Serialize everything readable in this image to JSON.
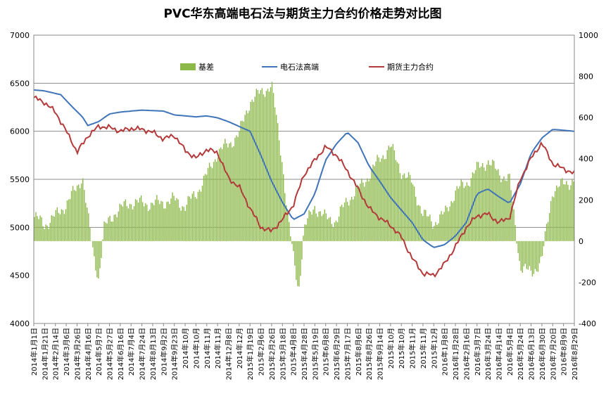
{
  "chart_data": {
    "type": "line+bar",
    "title": "PVC华东高端电石法与期货主力合约价格走势对比图",
    "y_left": {
      "min": 4000,
      "max": 7000,
      "ticks": [
        4000,
        4500,
        5000,
        5500,
        6000,
        6500,
        7000
      ]
    },
    "y_right": {
      "min": -400,
      "max": 1000,
      "ticks": [
        -400,
        -200,
        0,
        200,
        400,
        600,
        800,
        1000
      ]
    },
    "gridlines": [
      5000,
      5500,
      6000,
      6500
    ],
    "legend_position": "top",
    "series": [
      {
        "name": "基差",
        "kind": "bar",
        "axis": "right",
        "color": "#8DB84A"
      },
      {
        "name": "电石法高端",
        "kind": "line",
        "axis": "left",
        "color": "#3F74B9"
      },
      {
        "name": "期货主力合约",
        "kind": "line",
        "axis": "left",
        "color": "#B33A3A"
      }
    ],
    "x_tick_labels": [
      "2014年1月1日",
      "2014年1月21日",
      "2014年2月14日",
      "2014年3月6日",
      "2014年3月26日",
      "2014年4月16日",
      "2014年5月7日",
      "2014年5月27日",
      "2014年6月16日",
      "2014年7月4日",
      "2014年7月24日",
      "2014年8月13日",
      "2014年9月2日",
      "2014年9月23日",
      "2014年10月",
      "2014年10月",
      "2014年11月",
      "2014年11月",
      "2014年12月8日",
      "2014年12月",
      "2015年1月19日",
      "2015年2月6日",
      "2015年2月26日",
      "2015年3月18日",
      "2015年4月8日",
      "2015年4月28日",
      "2015年5月19日",
      "2015年6月8日",
      "2015年6月29日",
      "2015年7月17日",
      "2015年8月6日",
      "2015年8月26日",
      "2015年9月14日",
      "2015年10月",
      "2015年10月",
      "2015年11月",
      "2015年11月",
      "2015年12月",
      "2016年1月8日",
      "2016年1月28日",
      "2016年2月16日",
      "2016年3月7日",
      "2016年3月24日",
      "2016年4月14日",
      "2016年5月4日",
      "2016年5月24日",
      "2016年6月13日",
      "2016年6月30日",
      "2016年7月20日",
      "2016年8月9日",
      "2016年8月29日"
    ],
    "basis": [
      [
        0,
        120
      ],
      [
        0.02,
        80
      ],
      [
        0.04,
        120
      ],
      [
        0.06,
        180
      ],
      [
        0.08,
        260
      ],
      [
        0.09,
        320
      ],
      [
        0.1,
        120
      ],
      [
        0.11,
        -60
      ],
      [
        0.12,
        -180
      ],
      [
        0.13,
        60
      ],
      [
        0.15,
        140
      ],
      [
        0.18,
        190
      ],
      [
        0.22,
        180
      ],
      [
        0.26,
        200
      ],
      [
        0.28,
        170
      ],
      [
        0.3,
        230
      ],
      [
        0.32,
        320
      ],
      [
        0.34,
        430
      ],
      [
        0.36,
        470
      ],
      [
        0.38,
        520
      ],
      [
        0.4,
        680
      ],
      [
        0.42,
        720
      ],
      [
        0.44,
        760
      ],
      [
        0.46,
        380
      ],
      [
        0.47,
        120
      ],
      [
        0.48,
        -80
      ],
      [
        0.49,
        -240
      ],
      [
        0.5,
        60
      ],
      [
        0.52,
        170
      ],
      [
        0.54,
        110
      ],
      [
        0.56,
        100
      ],
      [
        0.58,
        200
      ],
      [
        0.6,
        250
      ],
      [
        0.62,
        320
      ],
      [
        0.64,
        400
      ],
      [
        0.66,
        460
      ],
      [
        0.68,
        340
      ],
      [
        0.7,
        280
      ],
      [
        0.72,
        130
      ],
      [
        0.74,
        90
      ],
      [
        0.76,
        130
      ],
      [
        0.78,
        240
      ],
      [
        0.8,
        280
      ],
      [
        0.82,
        350
      ],
      [
        0.84,
        390
      ],
      [
        0.86,
        330
      ],
      [
        0.88,
        300
      ],
      [
        0.9,
        -120
      ],
      [
        0.92,
        -160
      ],
      [
        0.94,
        -90
      ],
      [
        0.96,
        250
      ],
      [
        1,
        300
      ]
    ],
    "electric_high": [
      [
        0,
        6430
      ],
      [
        0.02,
        6420
      ],
      [
        0.05,
        6380
      ],
      [
        0.07,
        6260
      ],
      [
        0.09,
        6150
      ],
      [
        0.1,
        6060
      ],
      [
        0.12,
        6100
      ],
      [
        0.14,
        6180
      ],
      [
        0.16,
        6200
      ],
      [
        0.2,
        6220
      ],
      [
        0.24,
        6210
      ],
      [
        0.26,
        6170
      ],
      [
        0.3,
        6150
      ],
      [
        0.32,
        6160
      ],
      [
        0.34,
        6140
      ],
      [
        0.36,
        6100
      ],
      [
        0.38,
        6050
      ],
      [
        0.4,
        6000
      ],
      [
        0.42,
        5750
      ],
      [
        0.44,
        5480
      ],
      [
        0.46,
        5260
      ],
      [
        0.48,
        5080
      ],
      [
        0.5,
        5140
      ],
      [
        0.52,
        5350
      ],
      [
        0.54,
        5700
      ],
      [
        0.56,
        5870
      ],
      [
        0.58,
        5990
      ],
      [
        0.6,
        5880
      ],
      [
        0.62,
        5640
      ],
      [
        0.64,
        5480
      ],
      [
        0.66,
        5310
      ],
      [
        0.68,
        5180
      ],
      [
        0.7,
        5050
      ],
      [
        0.72,
        4870
      ],
      [
        0.74,
        4790
      ],
      [
        0.76,
        4820
      ],
      [
        0.78,
        4910
      ],
      [
        0.8,
        5050
      ],
      [
        0.82,
        5350
      ],
      [
        0.84,
        5400
      ],
      [
        0.86,
        5320
      ],
      [
        0.88,
        5250
      ],
      [
        0.9,
        5450
      ],
      [
        0.92,
        5770
      ],
      [
        0.94,
        5930
      ],
      [
        0.96,
        6020
      ],
      [
        1,
        6000
      ]
    ],
    "futures": [
      [
        0,
        6350
      ],
      [
        0.02,
        6300
      ],
      [
        0.04,
        6200
      ],
      [
        0.06,
        6000
      ],
      [
        0.07,
        5900
      ],
      [
        0.08,
        5780
      ],
      [
        0.1,
        5950
      ],
      [
        0.12,
        6050
      ],
      [
        0.14,
        6040
      ],
      [
        0.16,
        6000
      ],
      [
        0.18,
        6030
      ],
      [
        0.2,
        6020
      ],
      [
        0.22,
        5990
      ],
      [
        0.24,
        5920
      ],
      [
        0.26,
        5960
      ],
      [
        0.28,
        5800
      ],
      [
        0.3,
        5720
      ],
      [
        0.32,
        5810
      ],
      [
        0.34,
        5780
      ],
      [
        0.36,
        5510
      ],
      [
        0.38,
        5420
      ],
      [
        0.4,
        5200
      ],
      [
        0.42,
        5000
      ],
      [
        0.44,
        4960
      ],
      [
        0.46,
        5080
      ],
      [
        0.48,
        5230
      ],
      [
        0.5,
        5550
      ],
      [
        0.52,
        5700
      ],
      [
        0.54,
        5840
      ],
      [
        0.56,
        5750
      ],
      [
        0.58,
        5590
      ],
      [
        0.6,
        5400
      ],
      [
        0.62,
        5200
      ],
      [
        0.64,
        5100
      ],
      [
        0.66,
        5020
      ],
      [
        0.68,
        4900
      ],
      [
        0.7,
        4680
      ],
      [
        0.72,
        4520
      ],
      [
        0.74,
        4500
      ],
      [
        0.76,
        4620
      ],
      [
        0.78,
        4800
      ],
      [
        0.8,
        5000
      ],
      [
        0.82,
        5120
      ],
      [
        0.84,
        5140
      ],
      [
        0.86,
        5050
      ],
      [
        0.88,
        5100
      ],
      [
        0.9,
        5500
      ],
      [
        0.92,
        5720
      ],
      [
        0.94,
        5880
      ],
      [
        0.96,
        5660
      ],
      [
        1,
        5560
      ]
    ]
  }
}
